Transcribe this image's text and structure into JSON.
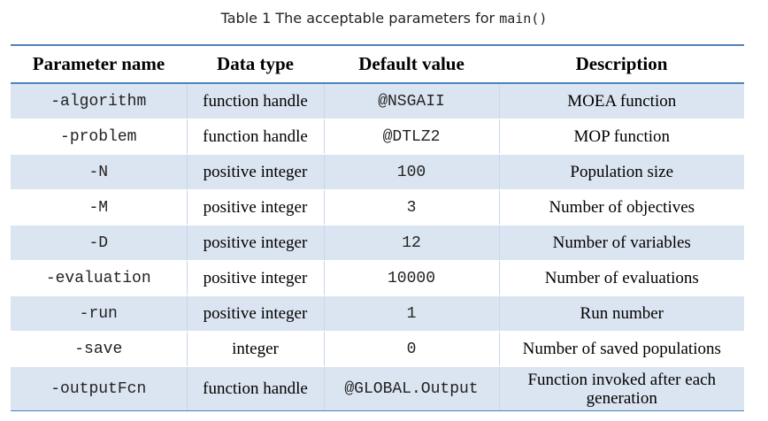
{
  "caption": {
    "prefix": "Table 1 The acceptable parameters for ",
    "code": "main()"
  },
  "table": {
    "headers": [
      "Parameter name",
      "Data type",
      "Default value",
      "Description"
    ],
    "rows": [
      [
        "-algorithm",
        "function handle",
        "@NSGAII",
        "MOEA function"
      ],
      [
        "-problem",
        "function handle",
        "@DTLZ2",
        "MOP function"
      ],
      [
        "-N",
        "positive integer",
        "100",
        "Population size"
      ],
      [
        "-M",
        "positive integer",
        "3",
        "Number of objectives"
      ],
      [
        "-D",
        "positive integer",
        "12",
        "Number of variables"
      ],
      [
        "-evaluation",
        "positive integer",
        "10000",
        "Number of evaluations"
      ],
      [
        "-run",
        "positive integer",
        "1",
        "Run number"
      ],
      [
        "-save",
        "integer",
        "0",
        "Number of saved populations"
      ],
      [
        "-outputFcn",
        "function handle",
        "@GLOBAL.Output",
        "Function invoked after each generation"
      ]
    ]
  },
  "colors": {
    "accent": "#4f81bd",
    "band": "#dbe5f1"
  }
}
